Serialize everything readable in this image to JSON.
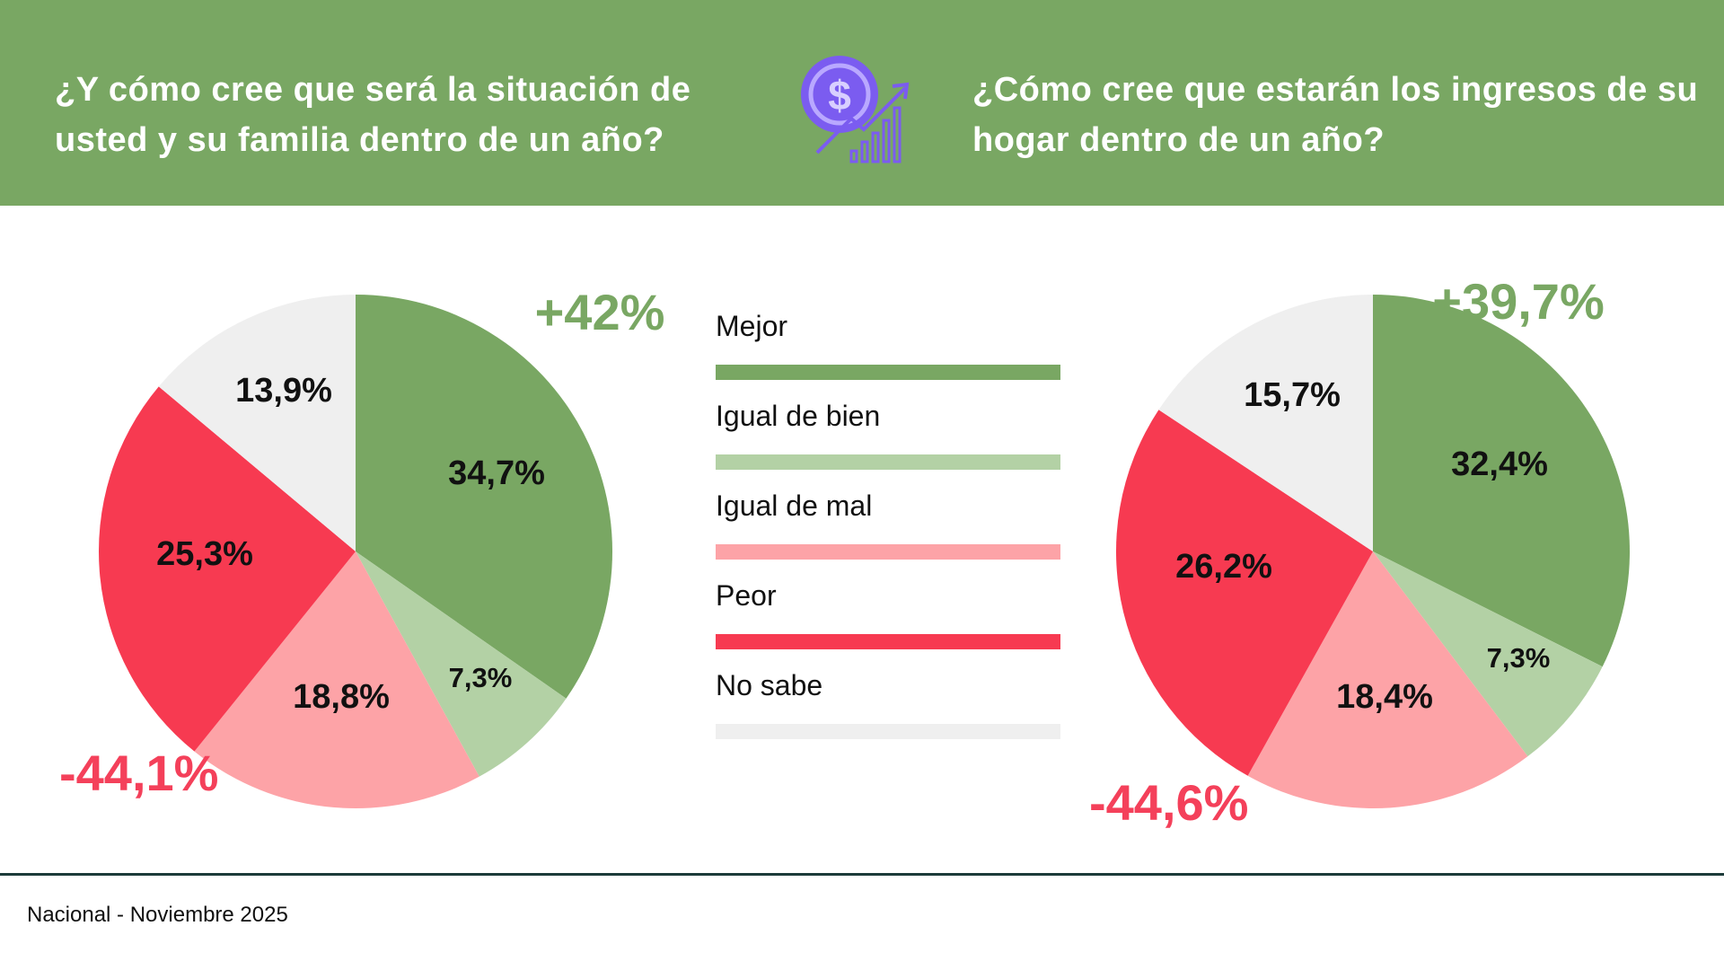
{
  "header": {
    "left_question": "¿Y cómo cree que será la situación de usted y su familia dentro de un año?",
    "right_question": "¿Cómo cree que estarán los ingresos de su hogar dentro de un año?",
    "icon": "money-growth-icon",
    "background_color": "#79a763"
  },
  "legend": [
    {
      "label": "Mejor",
      "color": "#79a763"
    },
    {
      "label": "Igual de bien",
      "color": "#b3d1a5"
    },
    {
      "label": "Igual de mal",
      "color": "#fda3a7"
    },
    {
      "label": "Peor",
      "color": "#f73a51"
    },
    {
      "label": "No sabe",
      "color": "#efefef"
    }
  ],
  "chart_data": [
    {
      "type": "pie",
      "title": "¿Y cómo cree que será la situación de usted y su familia dentro de un año?",
      "categories": [
        "Mejor",
        "Igual de bien",
        "Igual de mal",
        "Peor",
        "No sabe"
      ],
      "values": [
        34.7,
        7.3,
        18.8,
        25.3,
        13.9
      ],
      "labels": [
        "34,7%",
        "7,3%",
        "18,8%",
        "25,3%",
        "13,9%"
      ],
      "positive_total": "+42%",
      "negative_total": "-44,1%"
    },
    {
      "type": "pie",
      "title": "¿Cómo cree que estarán los ingresos de su hogar dentro de un año?",
      "categories": [
        "Mejor",
        "Igual de bien",
        "Igual de mal",
        "Peor",
        "No sabe"
      ],
      "values": [
        32.4,
        7.3,
        18.4,
        26.2,
        15.7
      ],
      "labels": [
        "32,4%",
        "7,3%",
        "18,4%",
        "26,2%",
        "15,7%"
      ],
      "positive_total": "+39,7%",
      "negative_total": "-44,6%"
    }
  ],
  "footer": {
    "text": "Nacional - Noviembre 2025"
  }
}
